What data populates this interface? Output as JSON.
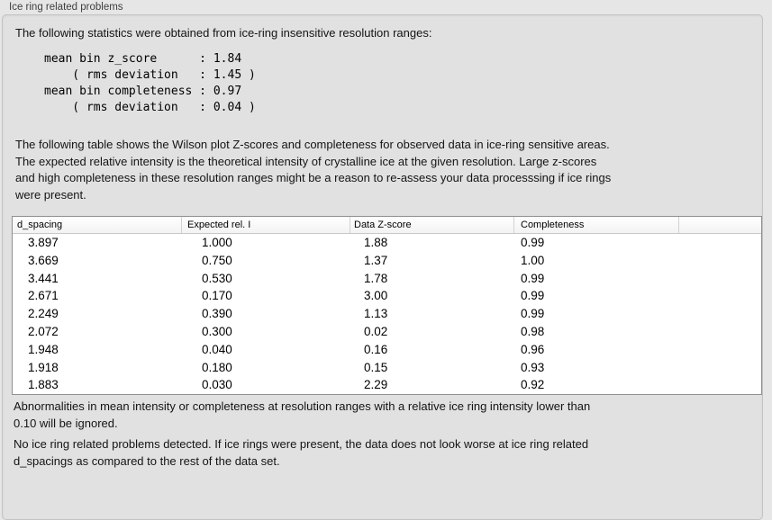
{
  "panel": {
    "title": "Ice ring related problems"
  },
  "intro_text": "The following statistics were obtained from ice-ring insensitive resolution ranges:",
  "stats_block": "mean bin z_score      : 1.84\n    ( rms deviation   : 1.45 )\nmean bin completeness : 0.97\n    ( rms deviation   : 0.04 )",
  "stats": {
    "mean_bin_z_score": "1.84",
    "z_score_rms_deviation": "1.45",
    "mean_bin_completeness": "0.97",
    "completeness_rms_deviation": "0.04"
  },
  "table_description": "The following table shows the Wilson plot Z-scores and completeness for observed data in ice-ring sensitive areas.\nThe expected relative intensity is the theoretical intensity of crystalline ice at the given resolution. Large z-scores\nand high completeness in these resolution ranges might be a reason to re-assess your data processsing if ice rings\nwere present.",
  "table": {
    "columns": [
      "d_spacing",
      "Expected rel. I",
      "Data Z-score",
      "Completeness"
    ],
    "rows": [
      [
        "3.897",
        "1.000",
        "1.88",
        "0.99"
      ],
      [
        "3.669",
        "0.750",
        "1.37",
        "1.00"
      ],
      [
        "3.441",
        "0.530",
        "1.78",
        "0.99"
      ],
      [
        "2.671",
        "0.170",
        "3.00",
        "0.99"
      ],
      [
        "2.249",
        "0.390",
        "1.13",
        "0.99"
      ],
      [
        "2.072",
        "0.300",
        "0.02",
        "0.98"
      ],
      [
        "1.948",
        "0.040",
        "0.16",
        "0.96"
      ],
      [
        "1.918",
        "0.180",
        "0.15",
        "0.93"
      ],
      [
        "1.883",
        "0.030",
        "2.29",
        "0.92"
      ]
    ]
  },
  "footnote": "Abnormalities in mean intensity or completeness at resolution ranges with a relative ice ring intensity lower than\n0.10 will be ignored.",
  "conclusion": "No ice ring related problems detected. If ice rings were present, the data does not look worse at ice ring related\nd_spacings as compared to the rest of the data set.",
  "colors": {
    "page_bg": "#e6e6e6",
    "panel_bg": "#e1e1e1",
    "panel_border": "#c2c2c2",
    "table_border": "#8f8f8f",
    "table_bg": "#ffffff"
  }
}
